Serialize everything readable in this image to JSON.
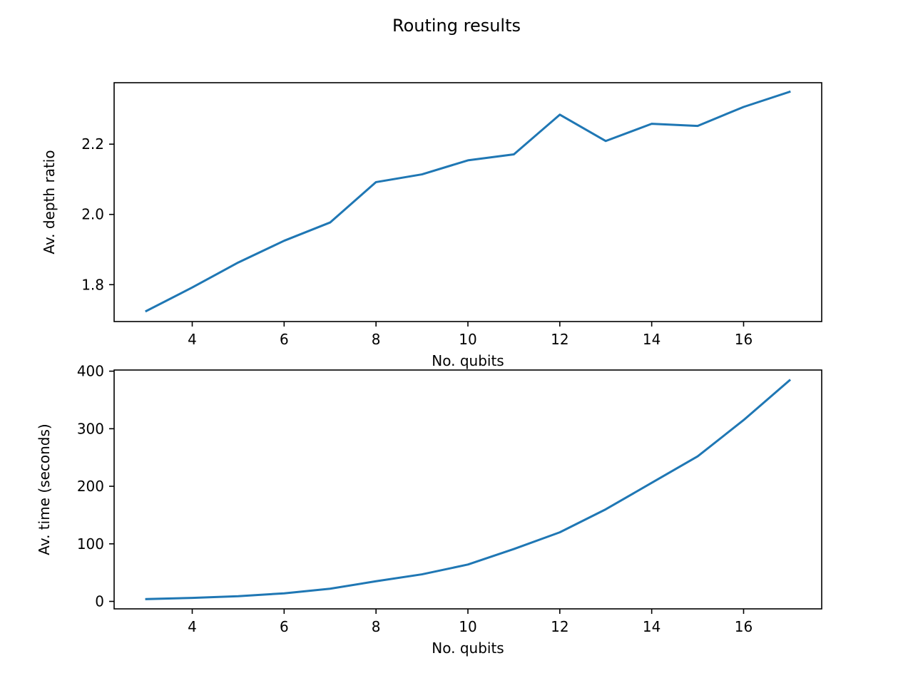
{
  "figure": {
    "title": "Routing results",
    "line_color": "#1f77b4"
  },
  "chart_data": [
    {
      "type": "line",
      "title": "",
      "xlabel": "No. qubits",
      "ylabel": "Av. depth ratio",
      "xlim": [
        2.3,
        17.7
      ],
      "ylim": [
        1.695,
        2.375
      ],
      "xticks": [
        4,
        6,
        8,
        10,
        12,
        14,
        16
      ],
      "yticks": [
        1.8,
        2.0,
        2.2
      ],
      "ytick_labels": [
        "1.8",
        "2.0",
        "2.2"
      ],
      "grid": false,
      "series": [
        {
          "x": [
            3,
            4,
            5,
            6,
            7,
            8,
            9,
            10,
            11,
            12,
            13,
            14,
            15,
            16,
            17
          ],
          "y": [
            1.725,
            1.792,
            1.863,
            1.925,
            1.977,
            2.092,
            2.114,
            2.154,
            2.171,
            2.284,
            2.209,
            2.258,
            2.252,
            2.306,
            2.349
          ]
        }
      ]
    },
    {
      "type": "line",
      "title": "",
      "xlabel": "No. qubits",
      "ylabel": "Av. time (seconds)",
      "xlim": [
        2.3,
        17.7
      ],
      "ylim": [
        -13,
        402
      ],
      "xticks": [
        4,
        6,
        8,
        10,
        12,
        14,
        16
      ],
      "yticks": [
        0,
        100,
        200,
        300,
        400
      ],
      "ytick_labels": [
        "0",
        "100",
        "200",
        "300",
        "400"
      ],
      "grid": false,
      "series": [
        {
          "x": [
            3,
            4,
            5,
            6,
            7,
            8,
            9,
            10,
            11,
            12,
            13,
            14,
            15,
            16,
            17
          ],
          "y": [
            4,
            6,
            9,
            14,
            22,
            35,
            47,
            64,
            91,
            120,
            160,
            206,
            252,
            315,
            384
          ]
        }
      ]
    }
  ]
}
